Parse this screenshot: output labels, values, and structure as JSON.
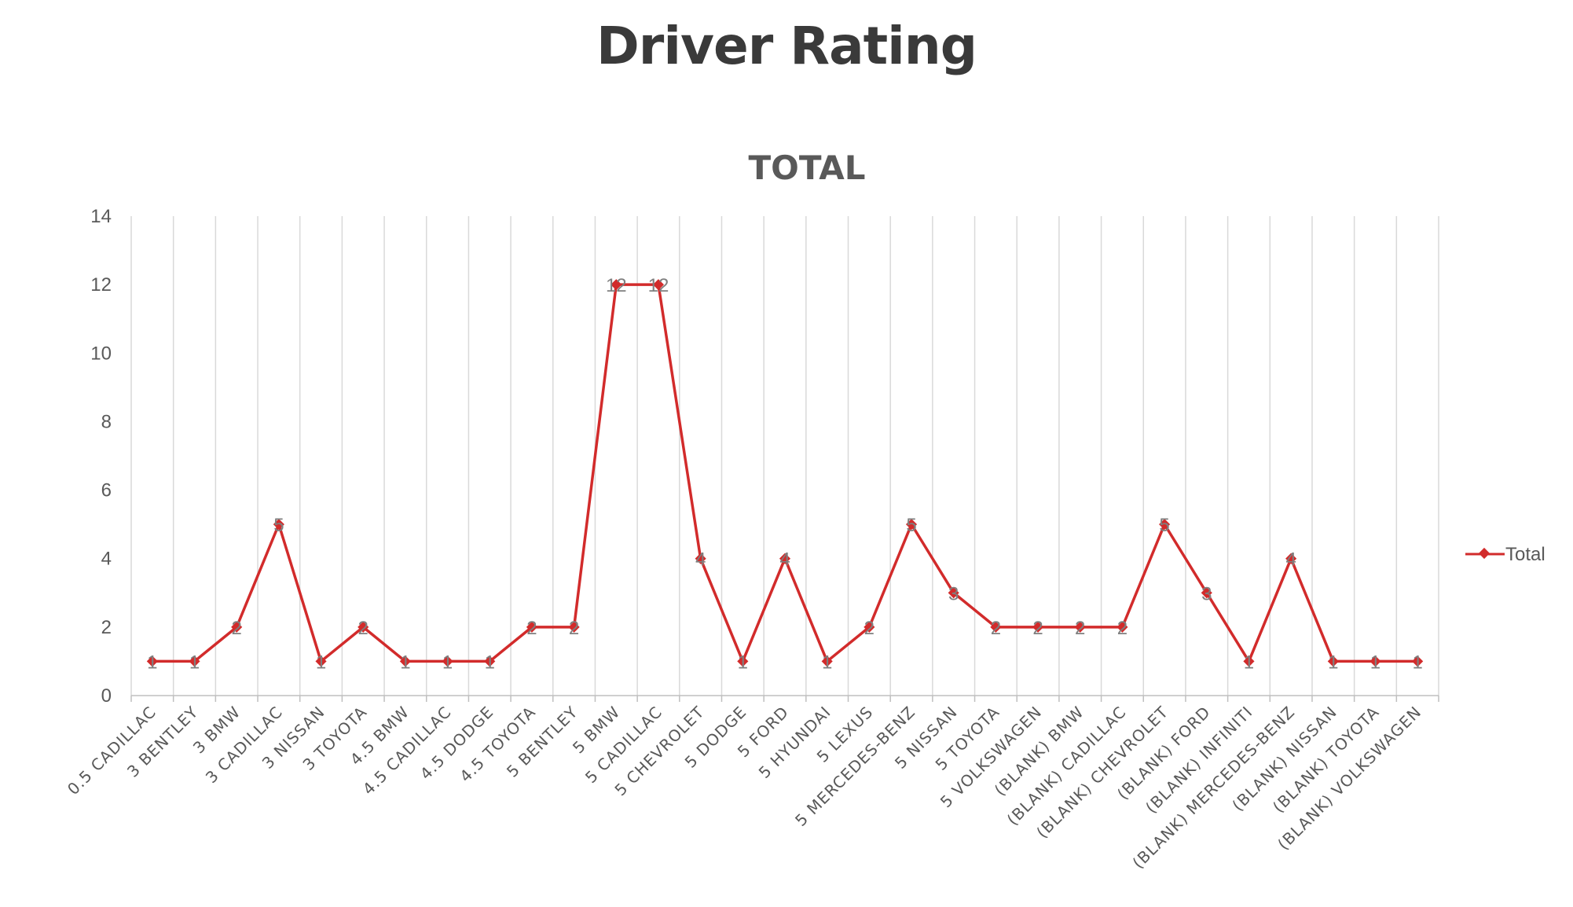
{
  "page": {
    "title": "Driver Rating"
  },
  "chart_data": {
    "type": "line",
    "title": "TOTAL",
    "xlabel": "",
    "ylabel": "",
    "ylim": [
      0,
      14
    ],
    "yticks": [
      0,
      2,
      4,
      6,
      8,
      10,
      12,
      14
    ],
    "grid": "vertical",
    "legend_position": "right",
    "categories": [
      "0.5 CADILLAC",
      "3 BENTLEY",
      "3 BMW",
      "3 CADILLAC",
      "3 NISSAN",
      "3 TOYOTA",
      "4.5 BMW",
      "4.5 CADILLAC",
      "4.5 DODGE",
      "4.5 TOYOTA",
      "5 BENTLEY",
      "5 BMW",
      "5 CADILLAC",
      "5 CHEVROLET",
      "5 DODGE",
      "5 FORD",
      "5 HYUNDAI",
      "5 LEXUS",
      "5 MERCEDES-BENZ",
      "5 NISSAN",
      "5 TOYOTA",
      "5 VOLKSWAGEN",
      "(BLANK) BMW",
      "(BLANK) CADILLAC",
      "(BLANK) CHEVROLET",
      "(BLANK) FORD",
      "(BLANK) INFINITI",
      "(BLANK) MERCEDES-BENZ",
      "(BLANK) NISSAN",
      "(BLANK) TOYOTA",
      "(BLANK) VOLKSWAGEN"
    ],
    "series": [
      {
        "name": "Total",
        "color": "#d22b2b",
        "values": [
          1,
          1,
          2,
          5,
          1,
          2,
          1,
          1,
          1,
          2,
          2,
          12,
          12,
          4,
          1,
          4,
          1,
          2,
          5,
          3,
          2,
          2,
          2,
          2,
          5,
          3,
          1,
          4,
          1,
          1,
          1
        ]
      }
    ]
  }
}
